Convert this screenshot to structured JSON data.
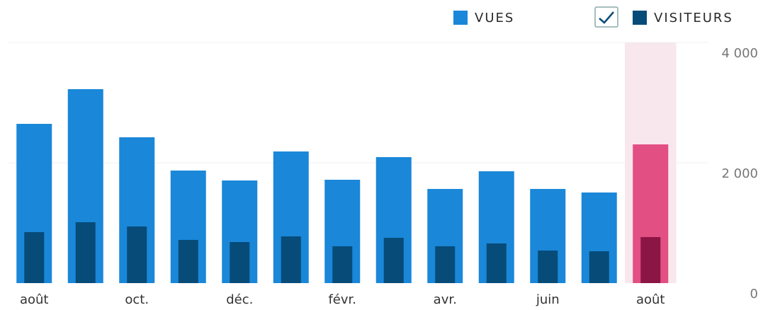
{
  "chart_data": {
    "type": "bar",
    "categories": [
      "août",
      null,
      "oct.",
      null,
      "déc.",
      null,
      "févr.",
      null,
      "avr.",
      null,
      "juin",
      null,
      "août"
    ],
    "series": [
      {
        "name": "VUES",
        "color": "#1a87d8",
        "values": [
          2647,
          3224,
          2424,
          1871,
          1706,
          2188,
          1718,
          2094,
          1565,
          1859,
          1565,
          1506,
          2306
        ]
      },
      {
        "name": "VISITEURS",
        "color": "#074b78",
        "values": [
          847,
          1012,
          941,
          718,
          682,
          776,
          612,
          753,
          612,
          659,
          541,
          529,
          765
        ]
      }
    ],
    "ylim": [
      0,
      4000
    ],
    "yticks": [
      0,
      {
        "value": 2000,
        "label": "2 000"
      },
      {
        "value": 4000,
        "label": "4 000"
      }
    ],
    "grid": true,
    "legend": "top-right",
    "highlight": {
      "index": 12,
      "colors": [
        "#e24f82",
        "#8b1545"
      ],
      "band": "#f9e7ee"
    }
  }
}
